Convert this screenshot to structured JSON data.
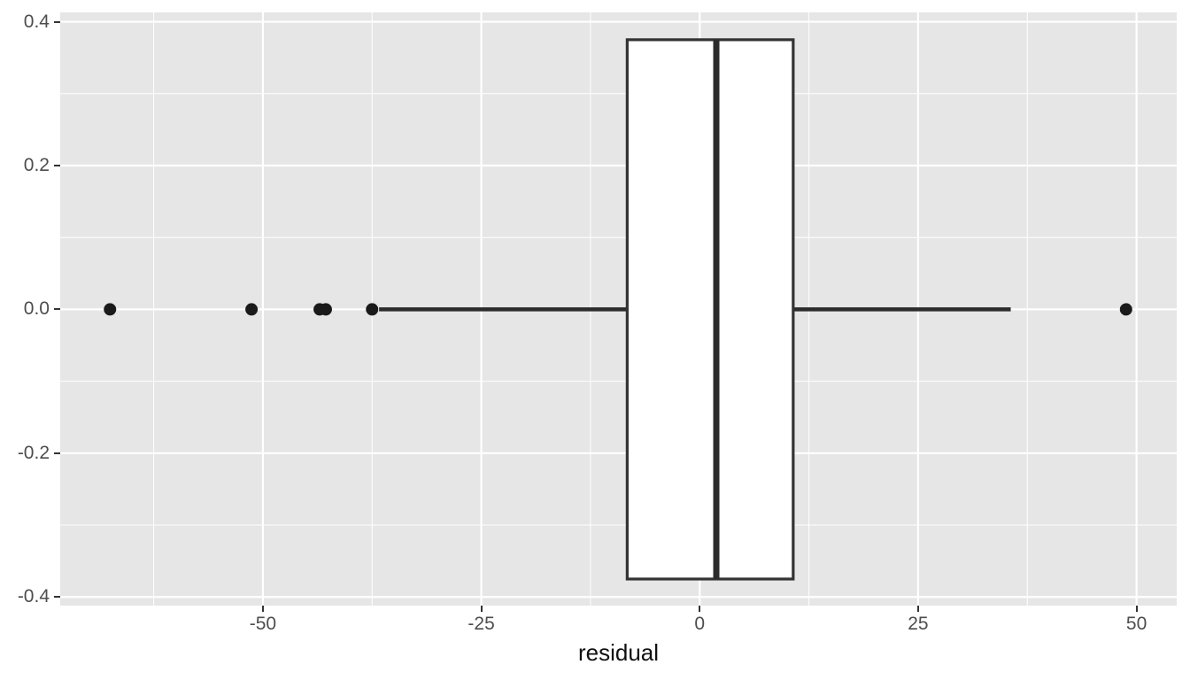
{
  "figure": {
    "xlabel": "residual"
  },
  "chart_data": {
    "type": "boxplot",
    "orientation": "horizontal",
    "title": "",
    "xlabel": "residual",
    "ylabel": "",
    "grid": "on",
    "x_range": [
      -73.2,
      54.6
    ],
    "y_range": [
      -0.412,
      0.413
    ],
    "x_ticks": [
      {
        "v": -50,
        "label": "-50"
      },
      {
        "v": -25,
        "label": "-25"
      },
      {
        "v": 0,
        "label": "0"
      },
      {
        "v": 25,
        "label": "25"
      },
      {
        "v": 50,
        "label": "50"
      }
    ],
    "y_ticks": [
      {
        "v": 0.4,
        "label": "0.4"
      },
      {
        "v": 0.2,
        "label": "0.2"
      },
      {
        "v": 0.0,
        "label": "0.0"
      },
      {
        "v": -0.2,
        "label": "-0.2"
      },
      {
        "v": -0.4,
        "label": "-0.4"
      }
    ],
    "x_minor_ticks": [
      -62.5,
      -37.5,
      -12.5,
      12.5,
      37.5
    ],
    "y_minor_ticks": [
      0.3,
      0.1,
      -0.1,
      -0.3
    ],
    "box": {
      "center_y": 0,
      "half_height": 0.375,
      "q1": -8.3,
      "median": 1.9,
      "q3": 10.7,
      "whisker_min": -36.7,
      "whisker_max": 35.6
    },
    "outliers": [
      -67.5,
      -51.3,
      -43.5,
      -42.8,
      -37.5,
      48.8
    ],
    "outlier_y": 0,
    "colors": {
      "panel_bg": "#E6E6E6",
      "grid_major": "#FFFFFF",
      "grid_minor": "#FFFFFF",
      "box_stroke": "#333333",
      "box_fill": "#FFFFFF",
      "median": "#2B2B2B",
      "whisker": "#2B2B2B",
      "point": "#1A1A1A",
      "tick_mark": "#333333",
      "tick_label": "#4D4D4D",
      "axis_title": "#111111"
    }
  }
}
